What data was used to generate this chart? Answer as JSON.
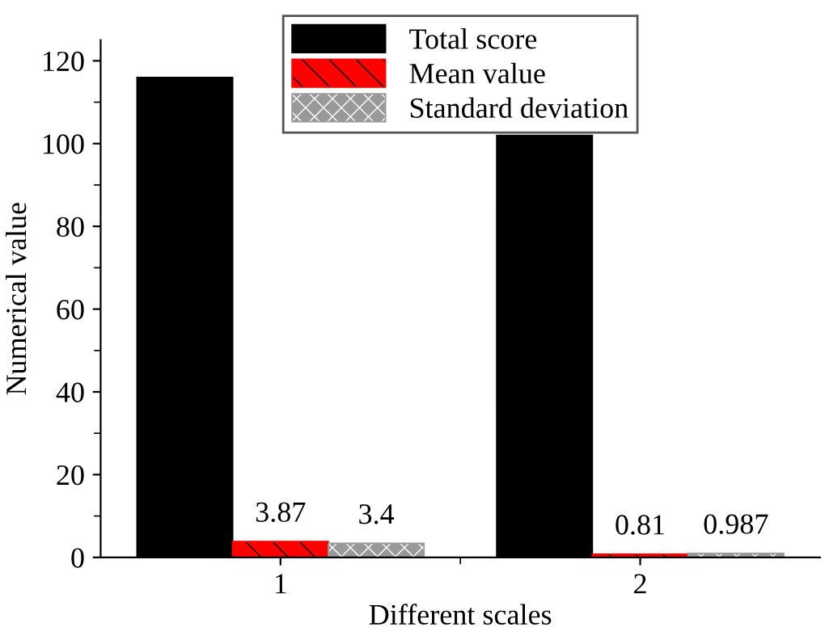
{
  "chart_data": {
    "type": "bar",
    "xlabel": "Different scales",
    "ylabel": "Numerical value",
    "categories": [
      "1",
      "2"
    ],
    "series": [
      {
        "name": "Total score",
        "color": "#000000",
        "values": [
          116,
          102
        ]
      },
      {
        "name": "Mean value",
        "color": "#ff0000",
        "values": [
          3.87,
          0.81
        ],
        "value_labels": [
          "3.87",
          "0.81"
        ]
      },
      {
        "name": "Standard deviation",
        "color": "#999999",
        "values": [
          3.4,
          0.987
        ],
        "value_labels": [
          "3.4",
          "0.987"
        ]
      }
    ],
    "ylim": [
      0,
      125
    ],
    "yticks": [
      0,
      20,
      40,
      60,
      80,
      100,
      120
    ],
    "grid": false,
    "legend": "top"
  }
}
